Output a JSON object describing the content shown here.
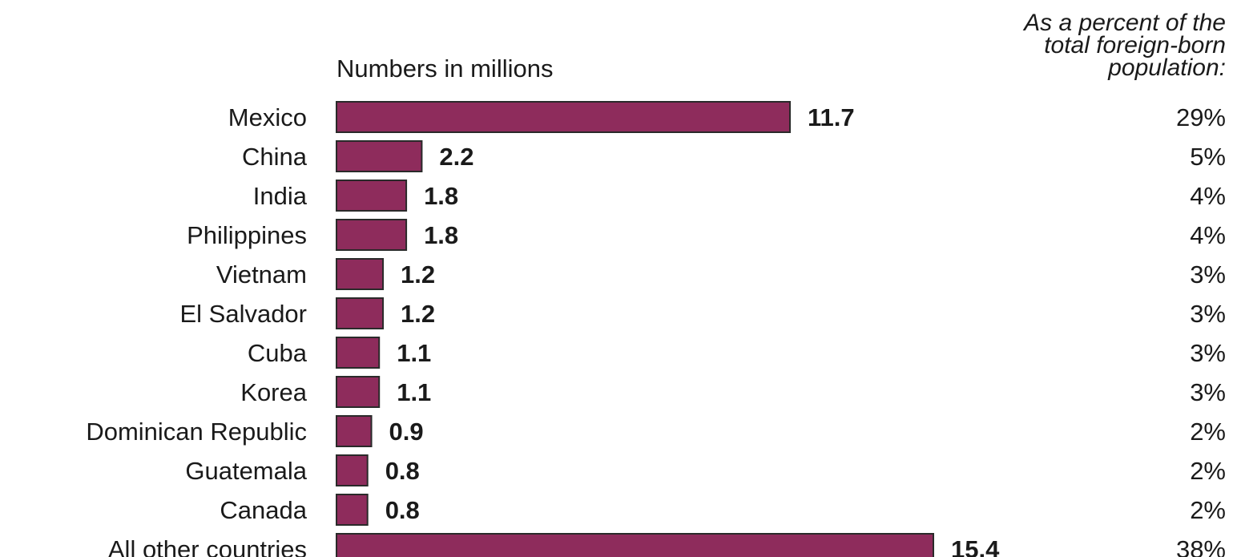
{
  "chart_data": {
    "type": "bar",
    "orientation": "horizontal",
    "units_label": "Numbers in millions",
    "percent_header": [
      "As a percent of the",
      "total foreign-born",
      "population:"
    ],
    "categories": [
      "Mexico",
      "China",
      "India",
      "Philippines",
      "Vietnam",
      "El Salvador",
      "Cuba",
      "Korea",
      "Dominican Republic",
      "Guatemala",
      "Canada",
      "All other countries"
    ],
    "values": [
      11.7,
      2.2,
      1.8,
      1.8,
      1.2,
      1.2,
      1.1,
      1.1,
      0.9,
      0.8,
      0.8,
      15.4
    ],
    "value_labels": [
      "11.7",
      "2.2",
      "1.8",
      "1.8",
      "1.2",
      "1.2",
      "1.1",
      "1.1",
      "0.9",
      "0.8",
      "0.8",
      "15.4"
    ],
    "percent_labels": [
      "29%",
      "5%",
      "4%",
      "4%",
      "3%",
      "3%",
      "3%",
      "3%",
      "2%",
      "2%",
      "2%",
      "38%"
    ],
    "bar_color": "#8e2c5c",
    "xlim": [
      0,
      15.4
    ]
  }
}
